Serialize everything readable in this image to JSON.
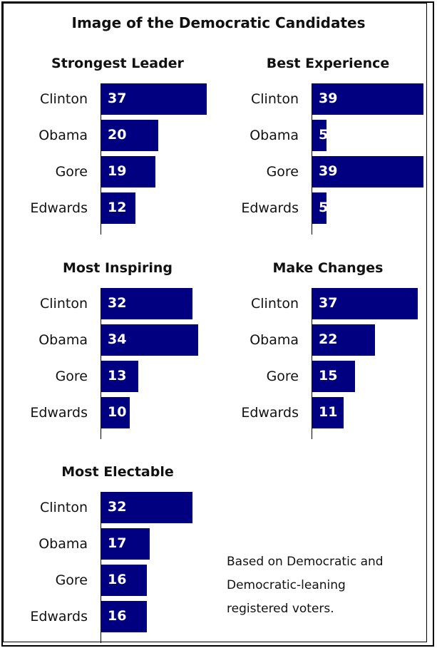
{
  "title": "Image of the Democratic Candidates",
  "note_lines": [
    "Based on Democratic and",
    "Democratic-leaning",
    "registered voters."
  ],
  "colors": {
    "bar": "#000080",
    "value_text": "#ffffff"
  },
  "chart_data": [
    {
      "type": "bar",
      "orientation": "horizontal",
      "title": "Strongest Leader",
      "categories": [
        "Clinton",
        "Obama",
        "Gore",
        "Edwards"
      ],
      "values": [
        37,
        20,
        19,
        12
      ]
    },
    {
      "type": "bar",
      "orientation": "horizontal",
      "title": "Best Experience",
      "categories": [
        "Clinton",
        "Obama",
        "Gore",
        "Edwards"
      ],
      "values": [
        39,
        5,
        39,
        5
      ]
    },
    {
      "type": "bar",
      "orientation": "horizontal",
      "title": "Most Inspiring",
      "categories": [
        "Clinton",
        "Obama",
        "Gore",
        "Edwards"
      ],
      "values": [
        32,
        34,
        13,
        10
      ]
    },
    {
      "type": "bar",
      "orientation": "horizontal",
      "title": "Make Changes",
      "categories": [
        "Clinton",
        "Obama",
        "Gore",
        "Edwards"
      ],
      "values": [
        37,
        22,
        15,
        11
      ]
    },
    {
      "type": "bar",
      "orientation": "horizontal",
      "title": "Most Electable",
      "categories": [
        "Clinton",
        "Obama",
        "Gore",
        "Edwards"
      ],
      "values": [
        32,
        17,
        16,
        16
      ]
    }
  ]
}
